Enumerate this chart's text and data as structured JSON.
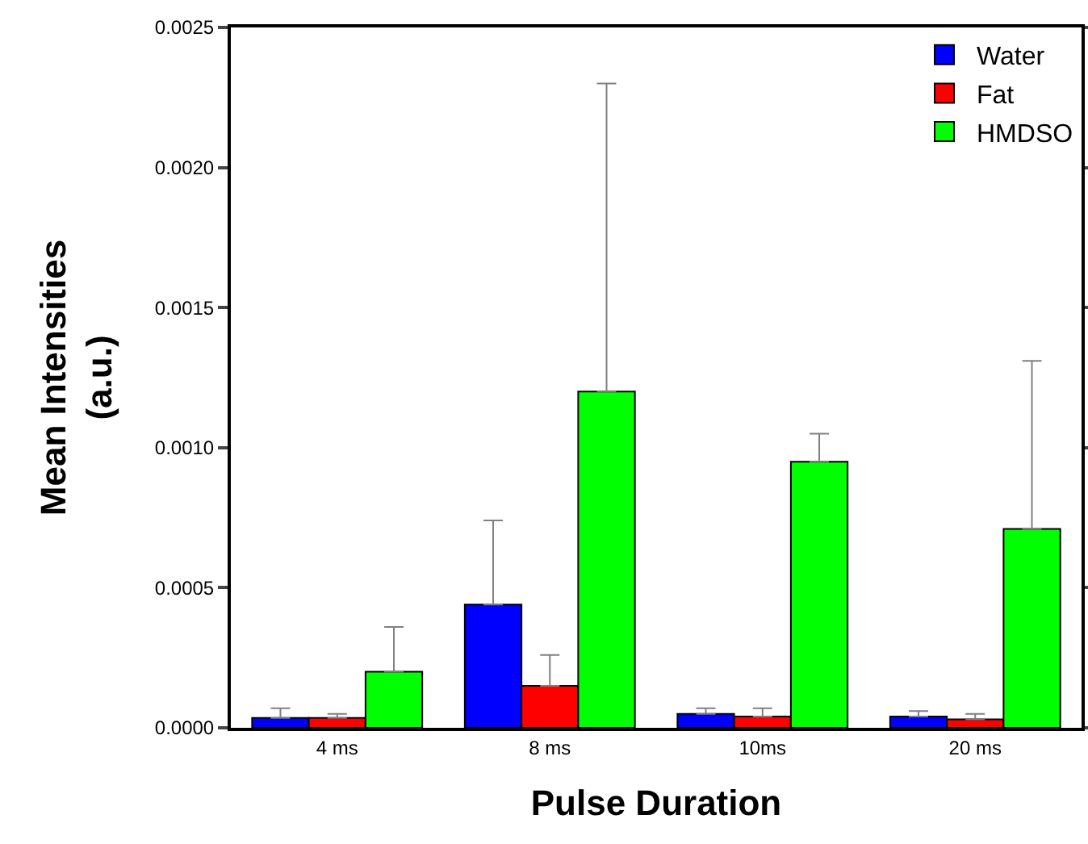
{
  "chart_data": {
    "type": "bar",
    "xlabel": "Pulse Duration",
    "ylabel": "Mean Intensities\n(a.u.)",
    "categories": [
      "4 ms",
      "8 ms",
      "10ms",
      "20 ms"
    ],
    "series": [
      {
        "name": "Water",
        "color": "#0000ff",
        "values": [
          3.5e-05,
          0.00044,
          5e-05,
          4e-05
        ],
        "errors": [
          [
            3.5e-05,
            7e-05
          ],
          [
            0.00044,
            0.00074
          ],
          [
            5e-05,
            7e-05
          ],
          [
            4e-05,
            6e-05
          ]
        ]
      },
      {
        "name": "Fat",
        "color": "#ff0000",
        "values": [
          3.5e-05,
          0.00015,
          4e-05,
          3e-05
        ],
        "errors": [
          [
            3.5e-05,
            5e-05
          ],
          [
            0.00015,
            0.00026
          ],
          [
            4e-05,
            7e-05
          ],
          [
            3e-05,
            5e-05
          ]
        ]
      },
      {
        "name": "HMDSO",
        "color": "#00ff00",
        "values": [
          0.0002,
          0.0012,
          0.00095,
          0.00071
        ],
        "errors": [
          [
            0.0002,
            0.00036
          ],
          [
            0.0012,
            0.0023
          ],
          [
            0.00095,
            0.00105
          ],
          [
            0.00071,
            0.00131
          ]
        ]
      }
    ],
    "ylim": [
      0,
      0.0025
    ],
    "yticks": [
      {
        "value": 0,
        "label": "0.0000"
      },
      {
        "value": 0.0005,
        "label": "0.0005"
      },
      {
        "value": 0.001,
        "label": "0.0010"
      },
      {
        "value": 0.0015,
        "label": "0.0015"
      },
      {
        "value": 0.002,
        "label": "0.0020"
      },
      {
        "value": 0.0025,
        "label": "0.0025"
      }
    ],
    "grid": false,
    "legend": "top right"
  }
}
